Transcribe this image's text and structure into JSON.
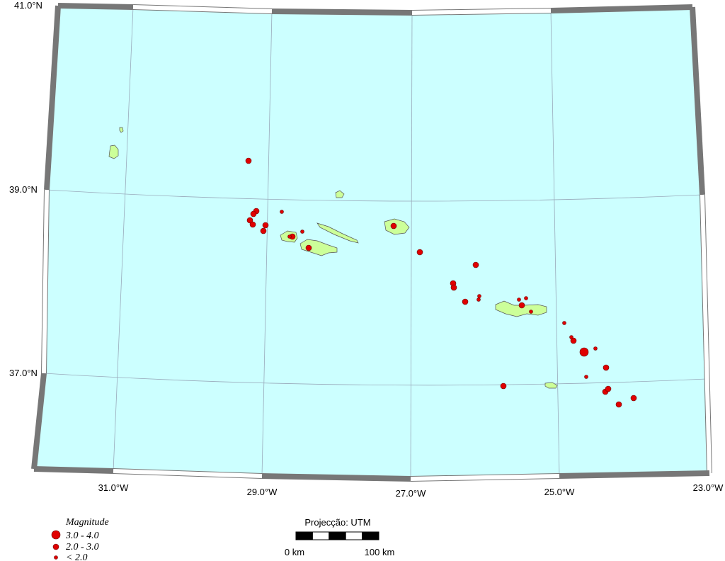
{
  "map": {
    "lat_labels": [
      "41.0°N",
      "39.0°N",
      "37.0°N"
    ],
    "lon_labels": [
      "31.0°W",
      "29.0°W",
      "27.0°W",
      "25.0°W",
      "23.0°W"
    ]
  },
  "legend": {
    "title": "Magnitude",
    "items": [
      "3.0 - 4.0",
      "2.0 - 3.0",
      "< 2.0"
    ]
  },
  "scale_bar": {
    "projection": "Projecção: UTM",
    "labels": [
      "0 km",
      "100 km"
    ]
  }
}
